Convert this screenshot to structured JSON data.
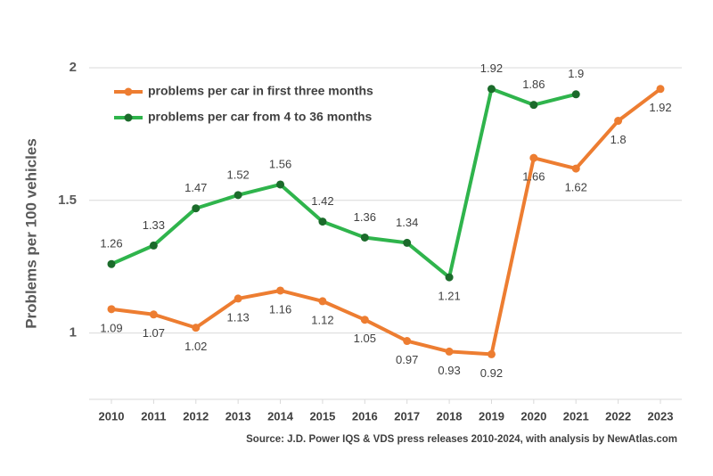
{
  "chart_data": {
    "type": "line",
    "y_label": "Problems per 100 vehicles",
    "source": "Source: J.D. Power IQS & VDS press releases 2010-2024, with analysis by NewAtlas.com",
    "categories": [
      "2010",
      "2011",
      "2012",
      "2013",
      "2014",
      "2015",
      "2016",
      "2017",
      "2018",
      "2019",
      "2020",
      "2021",
      "2022",
      "2023"
    ],
    "series": [
      {
        "name": "problems per car in first three months",
        "color": "#ed7d31",
        "marker_color": "#ed7d31",
        "values": [
          1.09,
          1.07,
          1.02,
          1.13,
          1.16,
          1.12,
          1.05,
          0.97,
          0.93,
          0.92,
          1.66,
          1.62,
          1.8,
          1.92
        ]
      },
      {
        "name": "problems per car from 4 to 36 months",
        "color": "#2fb44c",
        "marker_color": "#1b6b2b",
        "values": [
          1.26,
          1.33,
          1.47,
          1.52,
          1.56,
          1.42,
          1.36,
          1.34,
          1.21,
          1.92,
          1.86,
          1.9,
          null,
          null
        ]
      }
    ],
    "ylim": [
      0.75,
      2
    ],
    "yticks": [
      1,
      1.5,
      2
    ],
    "grid": true,
    "legend": "upper left"
  }
}
